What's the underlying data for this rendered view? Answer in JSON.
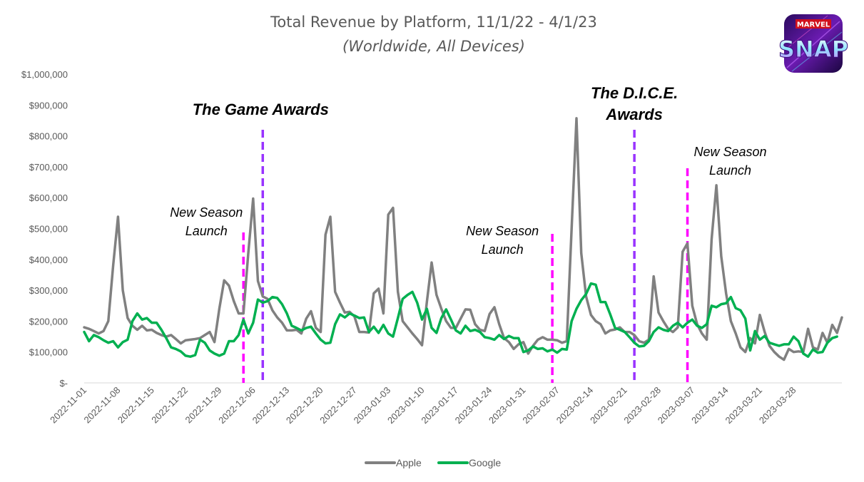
{
  "chart_data": {
    "type": "line",
    "title": "Total Revenue by Platform, 11/1/22 - 4/1/23",
    "subtitle": "(Worldwide, All Devices)",
    "xlabel": "",
    "ylabel": "",
    "ylim": [
      0,
      1000000
    ],
    "y_ticks": [
      0,
      100000,
      200000,
      300000,
      400000,
      500000,
      600000,
      700000,
      800000,
      900000,
      1000000
    ],
    "y_tick_labels": [
      "$-",
      "$100,000",
      "$200,000",
      "$300,000",
      "$400,000",
      "$500,000",
      "$600,000",
      "$700,000",
      "$800,000",
      "$900,000",
      "$1,000,000"
    ],
    "start_date": "2022-11-01",
    "x_tick_labels": [
      "2022-11-01",
      "2022-11-08",
      "2022-11-15",
      "2022-11-22",
      "2022-11-29",
      "2022-12-06",
      "2022-12-13",
      "2022-12-20",
      "2022-12-27",
      "2023-01-03",
      "2023-01-10",
      "2023-01-17",
      "2023-01-24",
      "2023-01-31",
      "2023-02-07",
      "2023-02-14",
      "2023-02-21",
      "2023-02-28",
      "2023-03-07",
      "2023-03-14",
      "2023-03-21",
      "2023-03-28"
    ],
    "grid": false,
    "legend_position": "bottom",
    "series": [
      {
        "name": "Apple",
        "color": "#808080",
        "values": [
          180000,
          175000,
          168000,
          160000,
          168000,
          200000,
          380000,
          538000,
          300000,
          210000,
          185000,
          172000,
          185000,
          170000,
          172000,
          162000,
          155000,
          150000,
          155000,
          142000,
          128000,
          138000,
          140000,
          142000,
          145000,
          155000,
          165000,
          132000,
          240000,
          332000,
          315000,
          265000,
          225000,
          225000,
          420000,
          597000,
          330000,
          280000,
          272000,
          235000,
          212000,
          195000,
          170000,
          170000,
          172000,
          160000,
          208000,
          232000,
          178000,
          165000,
          480000,
          538000,
          295000,
          260000,
          228000,
          230000,
          215000,
          165000,
          165000,
          163000,
          290000,
          305000,
          225000,
          545000,
          567000,
          295000,
          200000,
          180000,
          160000,
          142000,
          122000,
          262000,
          390000,
          285000,
          240000,
          200000,
          178000,
          178000,
          208000,
          238000,
          237000,
          190000,
          172000,
          168000,
          223000,
          245000,
          190000,
          145000,
          132000,
          110000,
          125000,
          132000,
          95000,
          120000,
          140000,
          148000,
          140000,
          140000,
          138000,
          130000,
          135000,
          500000,
          857000,
          420000,
          280000,
          220000,
          200000,
          190000,
          160000,
          170000,
          173000,
          180000,
          165000,
          165000,
          155000,
          135000,
          130000,
          140000,
          345000,
          228000,
          200000,
          175000,
          165000,
          180000,
          425000,
          452000,
          250000,
          190000,
          160000,
          140000,
          465000,
          640000,
          410000,
          290000,
          200000,
          160000,
          115000,
          100000,
          145000,
          128000,
          220000,
          165000,
          120000,
          100000,
          85000,
          75000,
          110000,
          100000,
          102000,
          100000,
          175000,
          115000,
          108000,
          162000,
          130000,
          188000,
          162000,
          212000
        ]
      },
      {
        "name": "Google",
        "color": "#00b050",
        "values": [
          165000,
          135000,
          155000,
          148000,
          138000,
          130000,
          135000,
          115000,
          132000,
          140000,
          200000,
          225000,
          205000,
          210000,
          195000,
          195000,
          172000,
          145000,
          115000,
          110000,
          102000,
          88000,
          85000,
          90000,
          140000,
          130000,
          105000,
          95000,
          88000,
          95000,
          135000,
          135000,
          155000,
          205000,
          160000,
          195000,
          270000,
          260000,
          265000,
          278000,
          275000,
          255000,
          225000,
          185000,
          178000,
          170000,
          178000,
          182000,
          160000,
          140000,
          128000,
          130000,
          190000,
          222000,
          212000,
          225000,
          218000,
          210000,
          212000,
          165000,
          182000,
          162000,
          188000,
          160000,
          150000,
          210000,
          272000,
          285000,
          295000,
          260000,
          205000,
          240000,
          178000,
          162000,
          210000,
          238000,
          205000,
          170000,
          160000,
          185000,
          168000,
          172000,
          165000,
          148000,
          145000,
          140000,
          155000,
          142000,
          152000,
          145000,
          145000,
          100000,
          105000,
          118000,
          110000,
          112000,
          102000,
          108000,
          98000,
          110000,
          108000,
          200000,
          240000,
          268000,
          288000,
          322000,
          318000,
          262000,
          262000,
          222000,
          178000,
          172000,
          165000,
          148000,
          130000,
          118000,
          120000,
          135000,
          165000,
          180000,
          172000,
          168000,
          185000,
          195000,
          180000,
          195000,
          205000,
          185000,
          178000,
          190000,
          250000,
          245000,
          255000,
          258000,
          278000,
          242000,
          235000,
          208000,
          105000,
          168000,
          140000,
          152000,
          130000,
          125000,
          120000,
          125000,
          125000,
          150000,
          135000,
          95000,
          85000,
          108000,
          98000,
          100000,
          130000,
          145000,
          150000
        ]
      }
    ],
    "annotations": [
      {
        "text_lines": [
          "The Game Awards"
        ],
        "style": "bold",
        "line_color": "#9933ff",
        "date": "2022-12-08"
      },
      {
        "text_lines": [
          "New Season",
          "Launch"
        ],
        "style": "italic",
        "line_color": "#ff00ff",
        "date": "2022-12-04"
      },
      {
        "text_lines": [
          "New Season",
          "Launch"
        ],
        "style": "italic",
        "line_color": "#ff00ff",
        "date": "2023-02-06"
      },
      {
        "text_lines": [
          "The D.I.C.E.",
          "Awards"
        ],
        "style": "bold",
        "line_color": "#9933ff",
        "date": "2023-02-23"
      },
      {
        "text_lines": [
          "New Season",
          "Launch"
        ],
        "style": "italic",
        "line_color": "#ff00ff",
        "date": "2023-03-06"
      }
    ]
  },
  "logo": {
    "line1": "MARVEL",
    "line2": "SNAP"
  }
}
